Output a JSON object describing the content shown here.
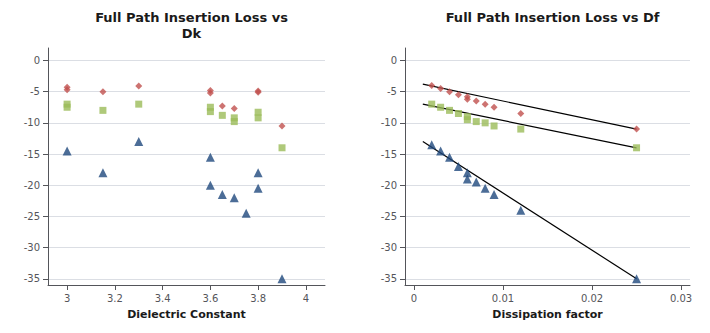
{
  "chart_data": [
    {
      "type": "scatter",
      "title": "Full Path Insertion Loss vs\nDk",
      "x_label": "Dielectric Constant",
      "xlim": [
        2.92,
        4.08
      ],
      "xticks": [
        3,
        3.2,
        3.4,
        3.6,
        3.8,
        4
      ],
      "ylim": [
        -36,
        2
      ],
      "yticks": [
        0,
        -5,
        -10,
        -15,
        -20,
        -25,
        -30,
        -35
      ],
      "grid": "y",
      "series": [
        {
          "type": "scatter",
          "marker": "diamond",
          "color": "#C0504D",
          "x": [
            3.0,
            3.0,
            3.15,
            3.3,
            3.6,
            3.6,
            3.65,
            3.7,
            3.8,
            3.8,
            3.9
          ],
          "values": [
            -4.3,
            -4.7,
            -5.0,
            -4.1,
            -4.8,
            -5.2,
            -7.3,
            -7.7,
            -4.9,
            -5.1,
            -10.5
          ]
        },
        {
          "type": "scatter",
          "marker": "square",
          "color": "#9BBB59",
          "x": [
            3.0,
            3.0,
            3.15,
            3.3,
            3.6,
            3.6,
            3.65,
            3.7,
            3.7,
            3.8,
            3.8,
            3.9
          ],
          "values": [
            -7.0,
            -7.5,
            -8.0,
            -7.0,
            -7.5,
            -8.2,
            -8.8,
            -9.2,
            -9.8,
            -8.3,
            -9.2,
            -14.0
          ]
        },
        {
          "type": "scatter",
          "marker": "triangle",
          "color": "#1F497D",
          "x": [
            3.0,
            3.15,
            3.3,
            3.6,
            3.6,
            3.65,
            3.7,
            3.75,
            3.8,
            3.8,
            3.9
          ],
          "values": [
            -14.5,
            -18.0,
            -13.0,
            -15.5,
            -20.0,
            -21.5,
            -22.0,
            -24.5,
            -18.0,
            -20.5,
            -35.0
          ]
        }
      ]
    },
    {
      "type": "scatter",
      "title": "Full Path Insertion Loss vs Df",
      "x_label": "Dissipation factor",
      "xlim": [
        -0.001,
        0.031
      ],
      "xticks": [
        0,
        0.01,
        0.02,
        0.03
      ],
      "ylim": [
        -36,
        2
      ],
      "yticks": [
        0,
        -5,
        -10,
        -15,
        -20,
        -25,
        -30,
        -35
      ],
      "grid": "y",
      "series": [
        {
          "type": "scatter",
          "marker": "diamond",
          "color": "#C0504D",
          "x": [
            0.002,
            0.003,
            0.004,
            0.005,
            0.006,
            0.006,
            0.007,
            0.008,
            0.009,
            0.012,
            0.025
          ],
          "values": [
            -4.0,
            -4.5,
            -5.0,
            -5.5,
            -5.8,
            -6.2,
            -6.5,
            -7.0,
            -7.5,
            -8.5,
            -11.0
          ]
        },
        {
          "type": "scatter",
          "marker": "square",
          "color": "#9BBB59",
          "x": [
            0.002,
            0.003,
            0.004,
            0.005,
            0.006,
            0.006,
            0.007,
            0.008,
            0.009,
            0.012,
            0.025
          ],
          "values": [
            -7.0,
            -7.5,
            -8.0,
            -8.5,
            -9.0,
            -9.5,
            -9.8,
            -10.0,
            -10.5,
            -11.0,
            -14.0
          ]
        },
        {
          "type": "scatter",
          "marker": "triangle",
          "color": "#1F497D",
          "x": [
            0.002,
            0.003,
            0.004,
            0.005,
            0.006,
            0.006,
            0.007,
            0.008,
            0.009,
            0.012,
            0.025
          ],
          "values": [
            -13.5,
            -14.5,
            -15.5,
            -17.0,
            -18.0,
            -19.0,
            -19.5,
            -20.5,
            -21.5,
            -24.0,
            -35.0
          ]
        },
        {
          "type": "line",
          "line_style": "solid",
          "color": "#000000",
          "x": [
            0.001,
            0.025
          ],
          "values": [
            -3.8,
            -11.0
          ]
        },
        {
          "type": "line",
          "line_style": "solid",
          "color": "#000000",
          "x": [
            0.001,
            0.025
          ],
          "values": [
            -7.0,
            -14.0
          ]
        },
        {
          "type": "line",
          "line_style": "solid",
          "color": "#000000",
          "x": [
            0.001,
            0.025
          ],
          "values": [
            -13.0,
            -35.0
          ]
        }
      ]
    }
  ]
}
